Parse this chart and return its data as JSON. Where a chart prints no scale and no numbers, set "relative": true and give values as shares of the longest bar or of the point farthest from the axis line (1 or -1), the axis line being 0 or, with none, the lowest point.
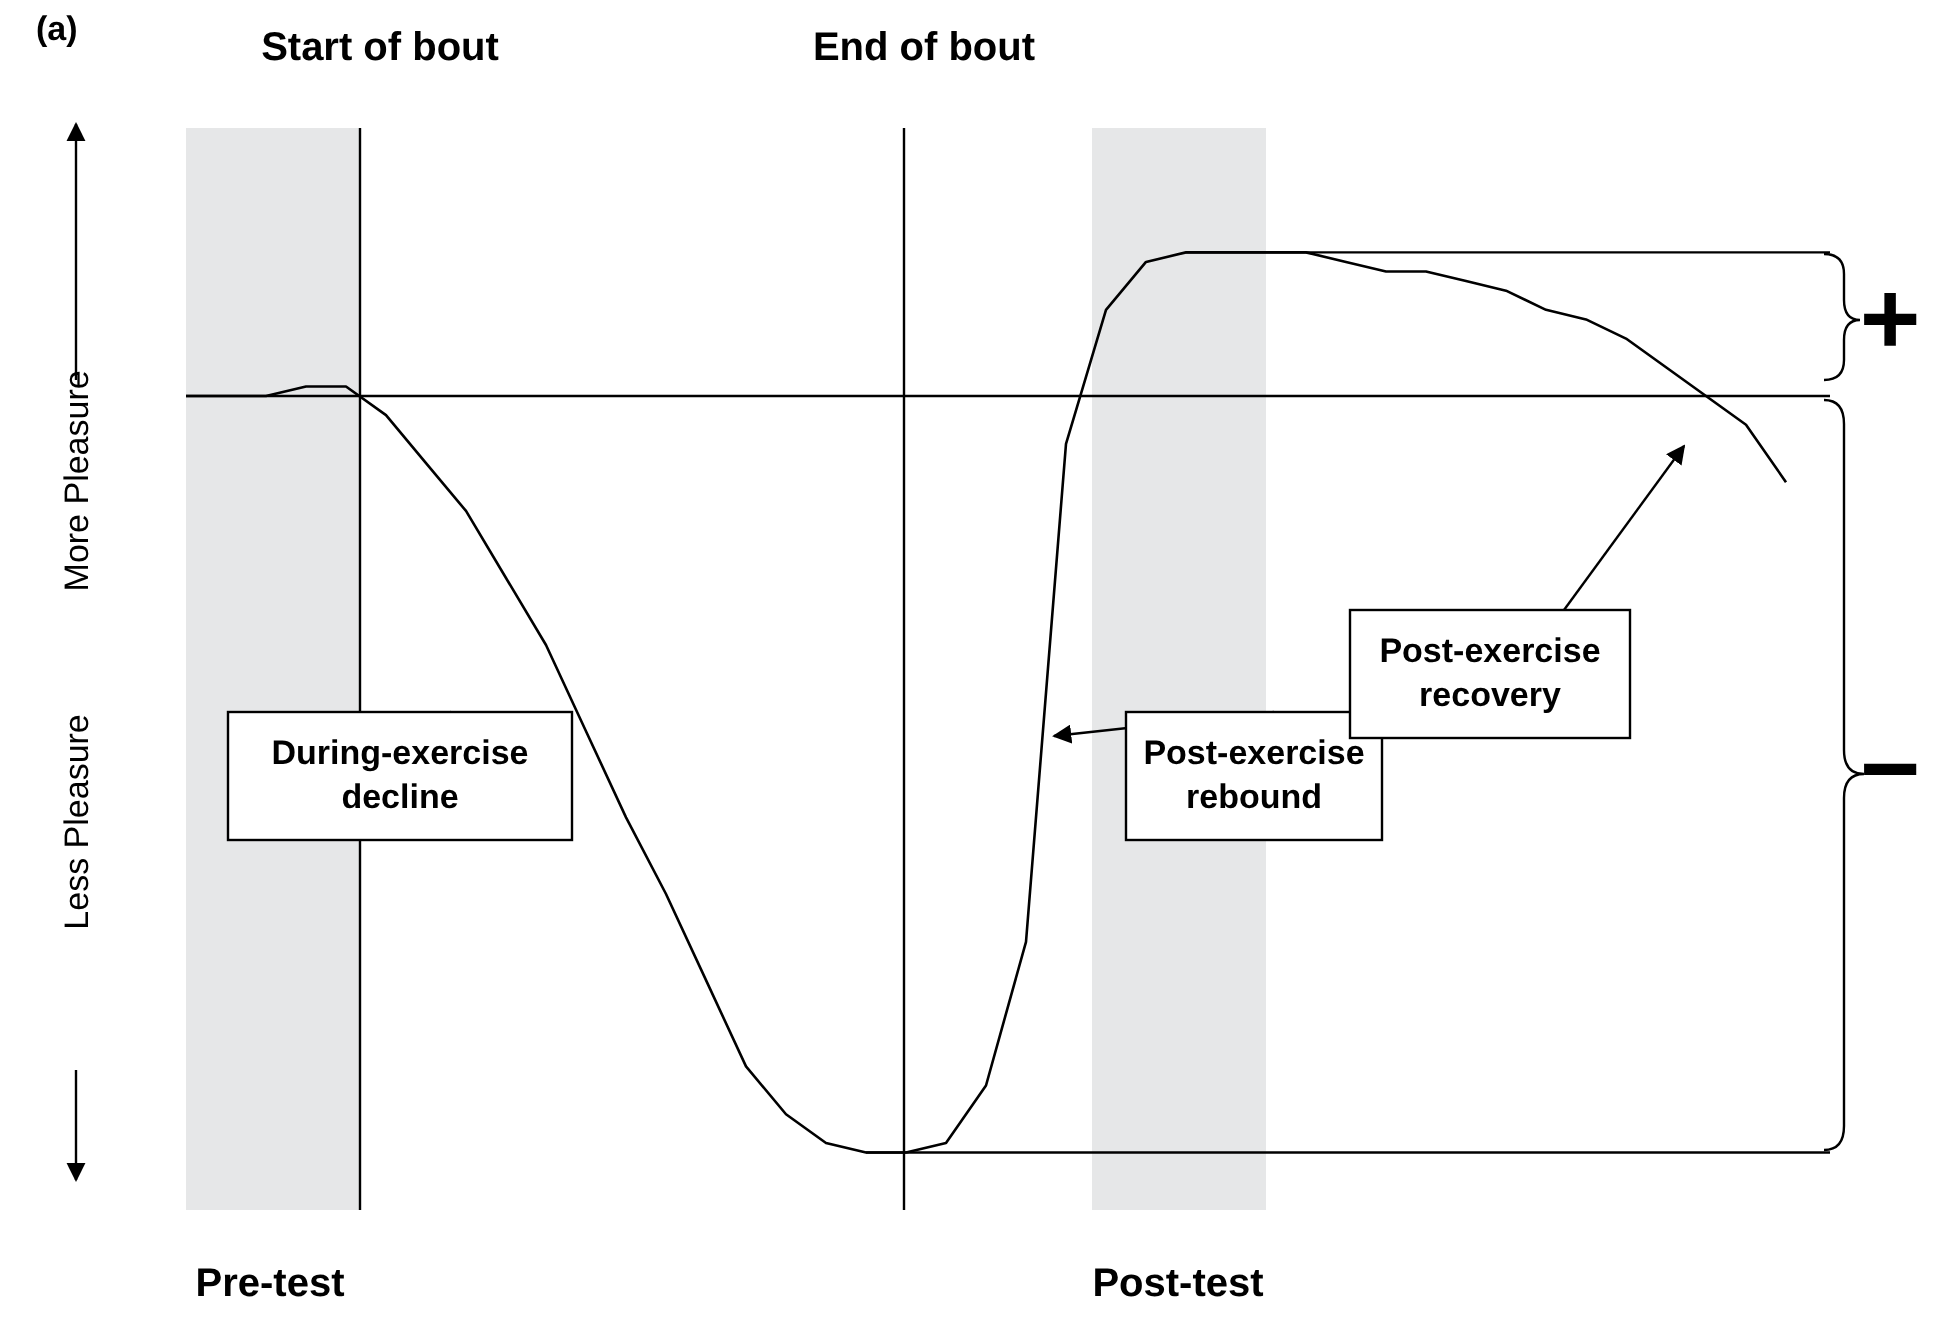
{
  "chart_data": {
    "type": "line",
    "title": "(a)",
    "ylabel": "Less Pleasure             More Pleasure",
    "relative": true,
    "marker": "none",
    "line_style": "solid",
    "categories": [
      null,
      null,
      null,
      null,
      null,
      null,
      null,
      null,
      null,
      null,
      null,
      null,
      null,
      null,
      null,
      null,
      null,
      null,
      null,
      null,
      null,
      null,
      null,
      null,
      null,
      null,
      null,
      null,
      null,
      null,
      null,
      null,
      null,
      null,
      null,
      null,
      null,
      null,
      null,
      null,
      null
    ],
    "series": [
      {
        "color": "#000000",
        "values": [
          0.85,
          0.85,
          0.85,
          0.86,
          0.86,
          0.83,
          0.78,
          0.73,
          0.66,
          0.59,
          0.5,
          0.41,
          0.33,
          0.24,
          0.15,
          0.1,
          0.07,
          0.06,
          0.06,
          0.07,
          0.13,
          0.28,
          0.8,
          0.94,
          0.99,
          1.0,
          1.0,
          1.0,
          1.0,
          0.99,
          0.98,
          0.98,
          0.97,
          0.96,
          0.94,
          0.93,
          0.91,
          0.88,
          0.85,
          0.82,
          0.76
        ]
      }
    ],
    "ref_lines": [
      {
        "axis": "y",
        "value": 0.85,
        "color": "#000000"
      },
      {
        "axis": "y",
        "value": 1.0,
        "color": "#000000"
      },
      {
        "axis": "y",
        "value": 0.06,
        "color": "#000000"
      }
    ],
    "annotations": [
      "During-exercise decline",
      "Post-exercise rebound",
      "Post-exercise recovery",
      "+",
      "−",
      "Start of bout",
      "End of bout",
      "Pre-test",
      "Post-test"
    ]
  }
}
